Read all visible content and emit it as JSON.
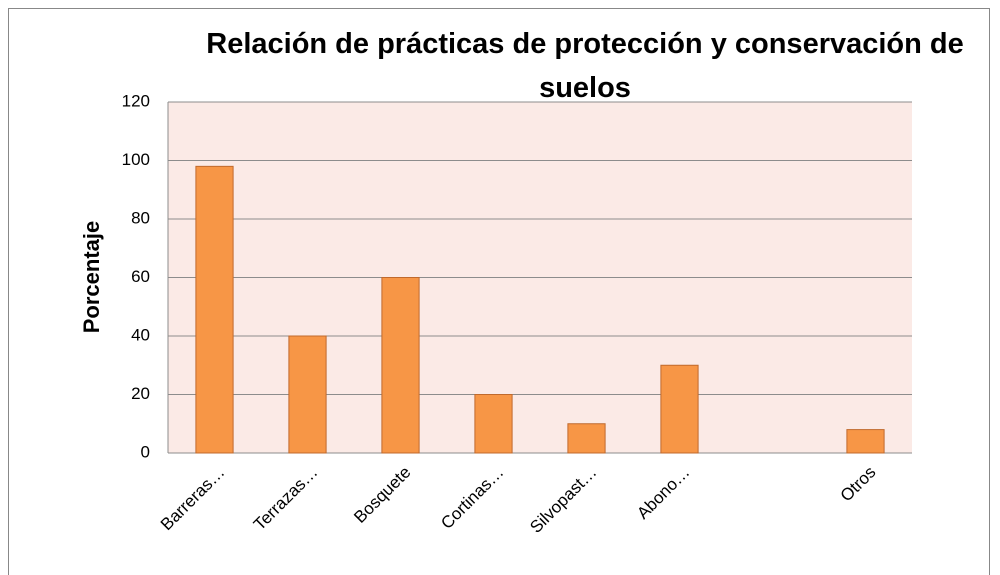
{
  "chart_data": {
    "type": "bar",
    "title": "Relación de prácticas de protección y conservación de suelos",
    "y_label": "Porcentaje",
    "categories": [
      "Barreras…",
      "Terrazas…",
      "Bosquete",
      "Cortinas…",
      "Silvopast…",
      "Abono…",
      null,
      "Otros"
    ],
    "values": [
      98,
      40,
      60,
      20,
      10,
      30,
      null,
      8
    ],
    "color": "#f79646",
    "ylim": [
      0,
      120
    ],
    "yticks": [
      0,
      20,
      40,
      60,
      80,
      100,
      120
    ],
    "grid": true
  }
}
